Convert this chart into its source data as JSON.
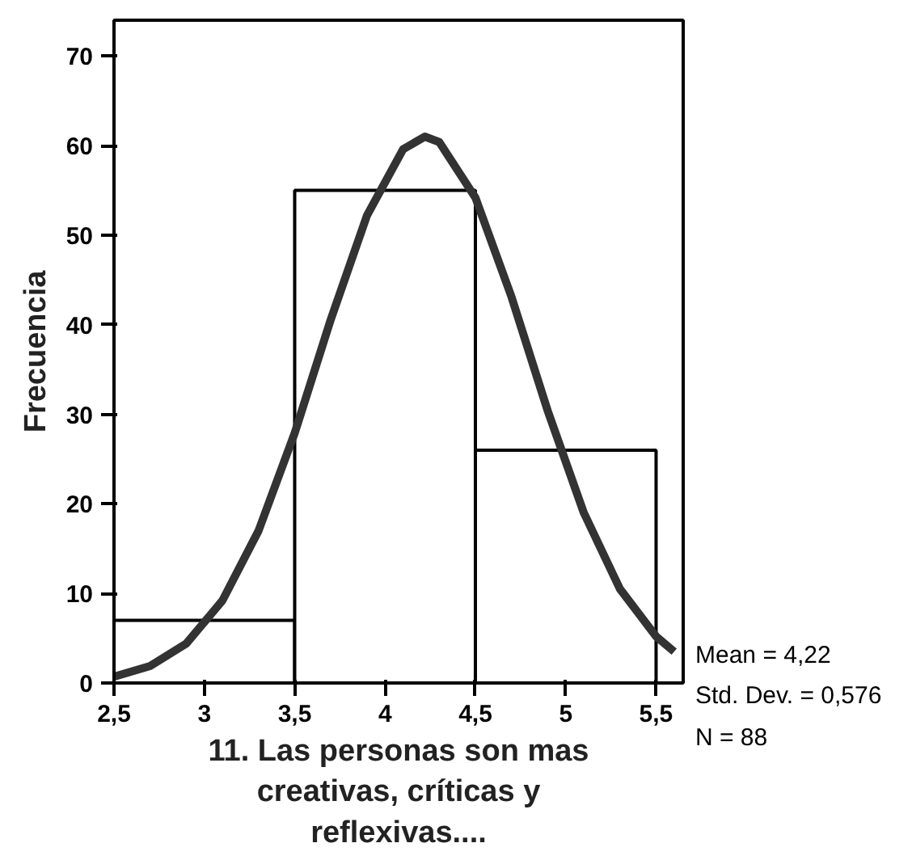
{
  "chart_data": {
    "type": "histogram",
    "xlabel": "11. Las personas son mas creativas, críticas y reflexivas....",
    "ylabel": "Frecuencia",
    "bins": [
      2.5,
      3.5,
      4.5,
      5.5
    ],
    "values": [
      7,
      55,
      26
    ],
    "color": "#ffffff",
    "series": [
      {
        "type": "line",
        "color": "#333333",
        "x": [
          2.5,
          2.7,
          2.9,
          3.1,
          3.3,
          3.5,
          3.7,
          3.9,
          4.1,
          4.22,
          4.3,
          4.5,
          4.7,
          4.9,
          5.1,
          5.3,
          5.5,
          5.6
        ],
        "values": [
          0.7,
          1.9,
          4.4,
          9.2,
          17,
          27.9,
          40.6,
          52.2,
          59.6,
          61,
          60.4,
          54.2,
          43.1,
          30.4,
          19,
          10.5,
          5.2,
          3.5
        ]
      }
    ],
    "xlim": [
      2.5,
      5.65
    ],
    "ylim": [
      0,
      74
    ],
    "xticks": [
      {
        "value": 2.5,
        "label": "2,5"
      },
      3,
      {
        "value": 3.5,
        "label": "3,5"
      },
      4,
      {
        "value": 4.5,
        "label": "4,5"
      },
      5,
      {
        "value": 5.5,
        "label": "5,5"
      }
    ],
    "yticks": [
      0,
      10,
      20,
      30,
      40,
      50,
      60,
      70
    ],
    "grid": false,
    "annotations": [
      "Mean = 4,22",
      "Std. Dev. = 0,576",
      "N = 88"
    ]
  }
}
